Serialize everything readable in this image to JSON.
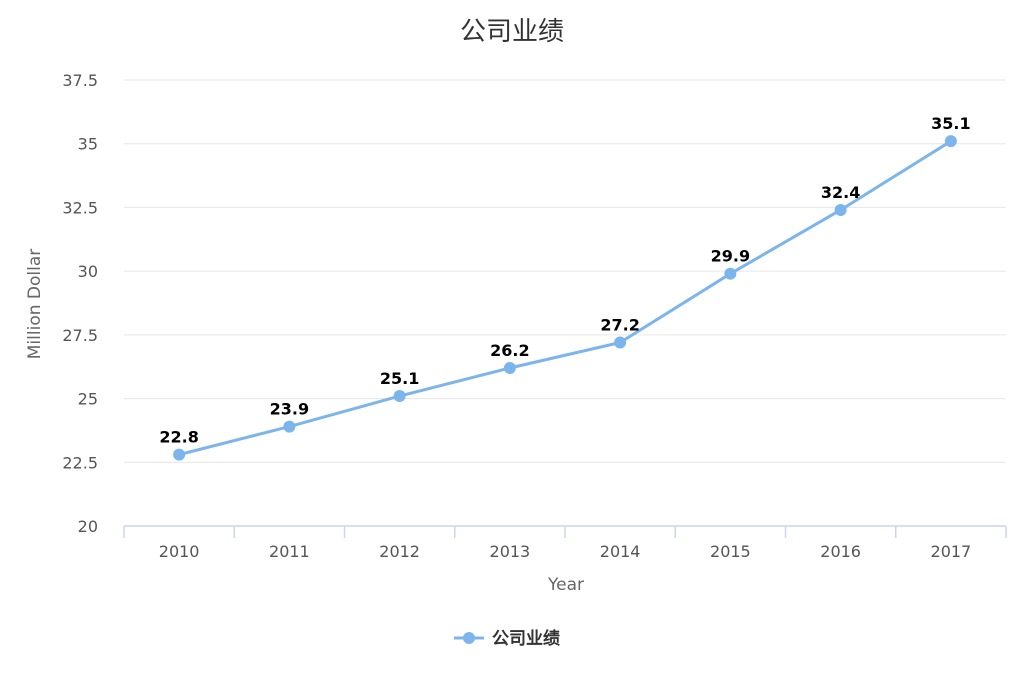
{
  "chart_data": {
    "type": "line",
    "title": "公司业绩",
    "xlabel": "Year",
    "ylabel": "Million Dollar",
    "categories": [
      "2010",
      "2011",
      "2012",
      "2013",
      "2014",
      "2015",
      "2016",
      "2017"
    ],
    "series": [
      {
        "name": "公司业绩",
        "values": [
          22.8,
          23.9,
          25.1,
          26.2,
          27.2,
          29.9,
          32.4,
          35.1
        ]
      }
    ],
    "ylim": [
      20,
      37.5
    ],
    "yticks": [
      "20",
      "22.5",
      "25",
      "27.5",
      "30",
      "32.5",
      "35",
      "37.5"
    ],
    "grid": true,
    "legend_position": "bottom-center",
    "colors": {
      "series": "#7cb5ec",
      "grid": "#e6e6e6",
      "axis": "#ccd6eb"
    }
  }
}
